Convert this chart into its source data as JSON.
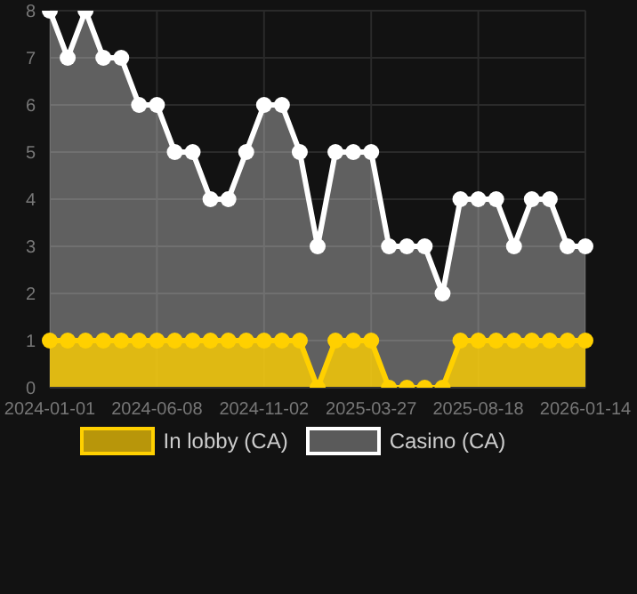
{
  "chart_data": {
    "type": "area",
    "categories": [
      "2024-01-01",
      null,
      null,
      null,
      null,
      null,
      "2024-06-08",
      null,
      null,
      null,
      null,
      null,
      "2024-11-02",
      null,
      null,
      null,
      null,
      null,
      "2025-03-27",
      null,
      null,
      null,
      null,
      null,
      "2025-08-18",
      null,
      null,
      null,
      null,
      null,
      "2026-01-14"
    ],
    "series": [
      {
        "name": "In lobby (CA)",
        "color": "#ffd000",
        "values": [
          1,
          1,
          1,
          1,
          1,
          1,
          1,
          1,
          1,
          1,
          1,
          1,
          1,
          1,
          1,
          0,
          1,
          1,
          1,
          0,
          0,
          0,
          0,
          1,
          1,
          1,
          1,
          1,
          1,
          1,
          1
        ]
      },
      {
        "name": "Casino (CA)",
        "color": "#ffffff",
        "values": [
          8,
          7,
          8,
          7,
          7,
          6,
          6,
          5,
          5,
          4,
          4,
          5,
          6,
          6,
          5,
          3,
          5,
          5,
          5,
          3,
          3,
          3,
          2,
          4,
          4,
          4,
          3,
          4,
          4,
          3,
          3
        ]
      }
    ],
    "ylim": [
      0,
      8
    ],
    "yticks": [
      0,
      1,
      2,
      3,
      4,
      5,
      6,
      7,
      8
    ],
    "grid": true,
    "legend": "bottom",
    "marker": "circle",
    "line_style": "solid"
  }
}
